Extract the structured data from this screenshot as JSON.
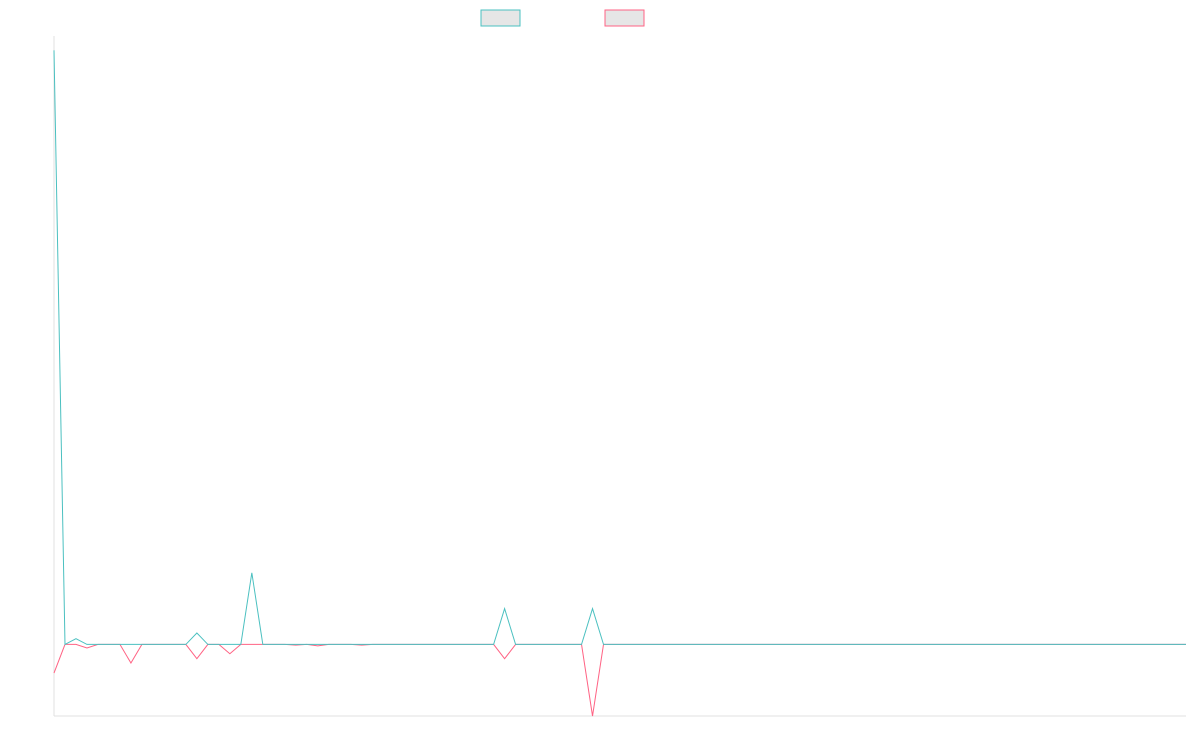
{
  "colors": {
    "series_a": "#4bc0c0",
    "series_b": "#ff6384",
    "legend_fill": "#e6e6e6",
    "axis": "#e0e0e0"
  },
  "chart_data": {
    "type": "line",
    "title": "",
    "xlabel": "",
    "ylabel": "",
    "legend_position": "top",
    "grid": false,
    "x": [
      0,
      1,
      2,
      3,
      4,
      5,
      6,
      7,
      8,
      9,
      10,
      11,
      12,
      13,
      14,
      15,
      16,
      17,
      18,
      19,
      20,
      21,
      22,
      23,
      24,
      25,
      26,
      27,
      28,
      29,
      30,
      31,
      32,
      33,
      34,
      35,
      36,
      37,
      38,
      39,
      40,
      41,
      42,
      43,
      44,
      45,
      46,
      47,
      48,
      49,
      50,
      51,
      52,
      53,
      54,
      55,
      56,
      57,
      58,
      59,
      60,
      61,
      62,
      63,
      64,
      65,
      66,
      67,
      68,
      69,
      70,
      71,
      72,
      73,
      74,
      75,
      76,
      77,
      78,
      79,
      80,
      81,
      82,
      83,
      84,
      85,
      86,
      87,
      88,
      89,
      90,
      91,
      92,
      93,
      94,
      95,
      96,
      97,
      98,
      99,
      100,
      101,
      102,
      103
    ],
    "ylim": [
      -10,
      85
    ],
    "series": [
      {
        "color_key": "series_a",
        "values": [
          83,
          0,
          0.8,
          0,
          0,
          0,
          0,
          0,
          0,
          0,
          0,
          0,
          0,
          1.6,
          0,
          0,
          0,
          0,
          10,
          0,
          0,
          0,
          0,
          0,
          0,
          0,
          0,
          0,
          0,
          0,
          0,
          0,
          0,
          0,
          0,
          0,
          0,
          0,
          0,
          0,
          0,
          5,
          0,
          0,
          0,
          0,
          0,
          0,
          0,
          5,
          0,
          0,
          0,
          0,
          0,
          0,
          0,
          0,
          0,
          0,
          0,
          0,
          0,
          0,
          0,
          0,
          0,
          0,
          0,
          0,
          0,
          0,
          0,
          0,
          0,
          0,
          0,
          0,
          0,
          0,
          0,
          0,
          0,
          0,
          0,
          0,
          0,
          0,
          0,
          0,
          0,
          0,
          0,
          0,
          0,
          0,
          0,
          0,
          0,
          0,
          0,
          0,
          0,
          0
        ]
      },
      {
        "color_key": "series_b",
        "values": [
          -4,
          0,
          0,
          -0.5,
          0,
          0,
          0,
          -2.6,
          0,
          0,
          0,
          0,
          0,
          -2,
          0,
          0,
          -1.3,
          0,
          0,
          0,
          0,
          0,
          -0.1,
          0,
          -0.2,
          0,
          0,
          0,
          -0.1,
          0,
          0,
          0,
          0,
          0,
          0,
          0,
          0,
          0,
          0,
          0,
          0,
          -2,
          0,
          0,
          0,
          0,
          0,
          0,
          0,
          -10,
          0,
          0,
          0,
          0,
          0,
          0,
          0,
          0,
          0,
          0,
          0,
          0,
          0,
          0,
          0,
          0,
          0,
          0,
          0,
          0,
          0,
          0,
          0,
          0,
          0,
          0,
          0,
          0,
          0,
          0,
          0,
          0,
          0,
          0,
          0,
          0,
          0,
          0,
          0,
          0,
          0,
          0,
          0,
          0,
          0,
          0,
          0,
          0,
          0,
          0,
          0,
          0,
          0,
          0
        ]
      }
    ]
  }
}
